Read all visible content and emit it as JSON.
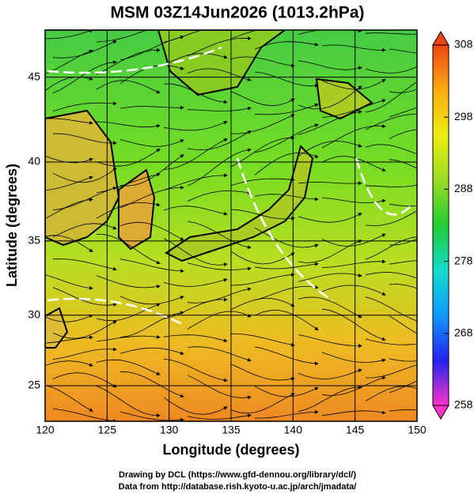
{
  "chart_data": {
    "type": "map",
    "title": "MSM 03Z14Jun2026 (1013.2hPa)",
    "xlabel": "Longitude (degrees)",
    "ylabel": "Latitude  (degrees)",
    "xlim": [
      120,
      150
    ],
    "xticks": [
      120,
      125,
      130,
      135,
      140,
      145,
      150
    ],
    "ylim": [
      22.4,
      47.6
    ],
    "yticks": [
      25,
      30,
      35,
      40,
      45
    ],
    "projection": "mercator",
    "grid": true,
    "colorbar": {
      "lim": [
        258,
        308
      ],
      "ticks": [
        258,
        268,
        278,
        288,
        298,
        308
      ],
      "colors": [
        "#ff33cc",
        "#2222ee",
        "#1199ff",
        "#11ddcc",
        "#22cc33",
        "#99dd22",
        "#eeee11",
        "#ffaa11",
        "#ee4411"
      ]
    },
    "credits": [
      "Drawing by DCL (https://www.gfd-dennou.org/library/dcl/)",
      "Data from http://database.rish.kyoto-u.ac.jp/arch/jmadata/"
    ]
  }
}
